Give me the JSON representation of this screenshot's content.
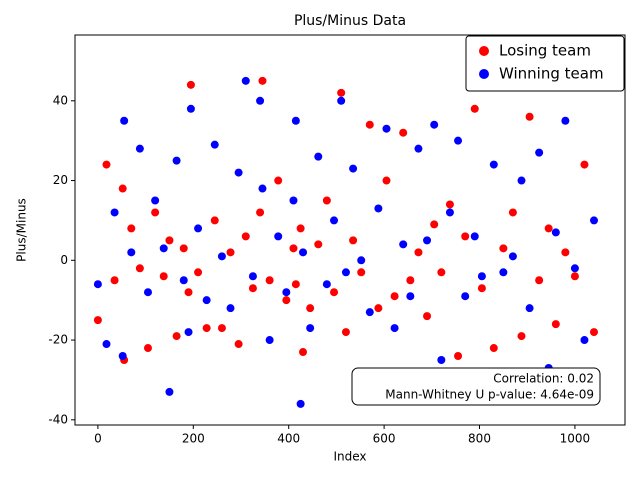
{
  "chart_data": {
    "type": "scatter",
    "title": "Plus/Minus Data",
    "xlabel": "Index",
    "ylabel": "Plus/Minus",
    "x": [
      0,
      18,
      35,
      52,
      55,
      70,
      88,
      105,
      120,
      138,
      150,
      165,
      180,
      190,
      195,
      210,
      228,
      245,
      260,
      278,
      295,
      310,
      325,
      340,
      345,
      360,
      378,
      395,
      410,
      415,
      425,
      430,
      445,
      462,
      480,
      495,
      510,
      520,
      535,
      552,
      570,
      588,
      605,
      622,
      640,
      655,
      672,
      690,
      705,
      720,
      738,
      755,
      770,
      790,
      805,
      830,
      850,
      870,
      888,
      905,
      925,
      945,
      960,
      980,
      1000,
      1020,
      1040
    ],
    "series": [
      {
        "name": "Losing team",
        "color": "#ff0000",
        "values": [
          -15,
          24,
          -5,
          18,
          -25,
          8,
          -2,
          -22,
          12,
          -4,
          5,
          -19,
          3,
          -8,
          44,
          -3,
          -17,
          10,
          -17,
          2,
          -21,
          6,
          -7,
          12,
          45,
          -5,
          20,
          -10,
          3,
          -6,
          8,
          -23,
          -12,
          4,
          15,
          -8,
          42,
          -18,
          5,
          -3,
          34,
          -12,
          20,
          -9,
          32,
          -5,
          2,
          -14,
          9,
          -3,
          14,
          -24,
          6,
          38,
          -7,
          -22,
          3,
          12,
          -19,
          36,
          -5,
          8,
          -16,
          2,
          -4,
          24,
          -18
        ]
      },
      {
        "name": "Winning team",
        "color": "#0000ff",
        "values": [
          -6,
          -21,
          12,
          -24,
          35,
          2,
          28,
          -8,
          15,
          3,
          -33,
          25,
          -5,
          -18,
          38,
          8,
          -10,
          29,
          1,
          -12,
          22,
          45,
          -4,
          40,
          18,
          -20,
          6,
          -8,
          15,
          35,
          -36,
          2,
          -17,
          26,
          -6,
          10,
          40,
          -3,
          23,
          0,
          -13,
          13,
          33,
          -17,
          4,
          -9,
          28,
          5,
          34,
          -25,
          12,
          30,
          -9,
          6,
          -4,
          24,
          -3,
          1,
          20,
          -12,
          27,
          -27,
          7,
          35,
          -2,
          -20,
          10
        ]
      }
    ],
    "xlim": [
      -48,
      1105
    ],
    "ylim": [
      -41.3,
      56.5
    ],
    "xticks": [
      0,
      200,
      400,
      600,
      800,
      1000
    ],
    "yticks": [
      -40,
      -20,
      0,
      20,
      40
    ],
    "legend": "upper right",
    "annotations": [
      "Correlation: 0.02",
      "Mann-Whitney U p-value: 4.64e-09"
    ]
  }
}
